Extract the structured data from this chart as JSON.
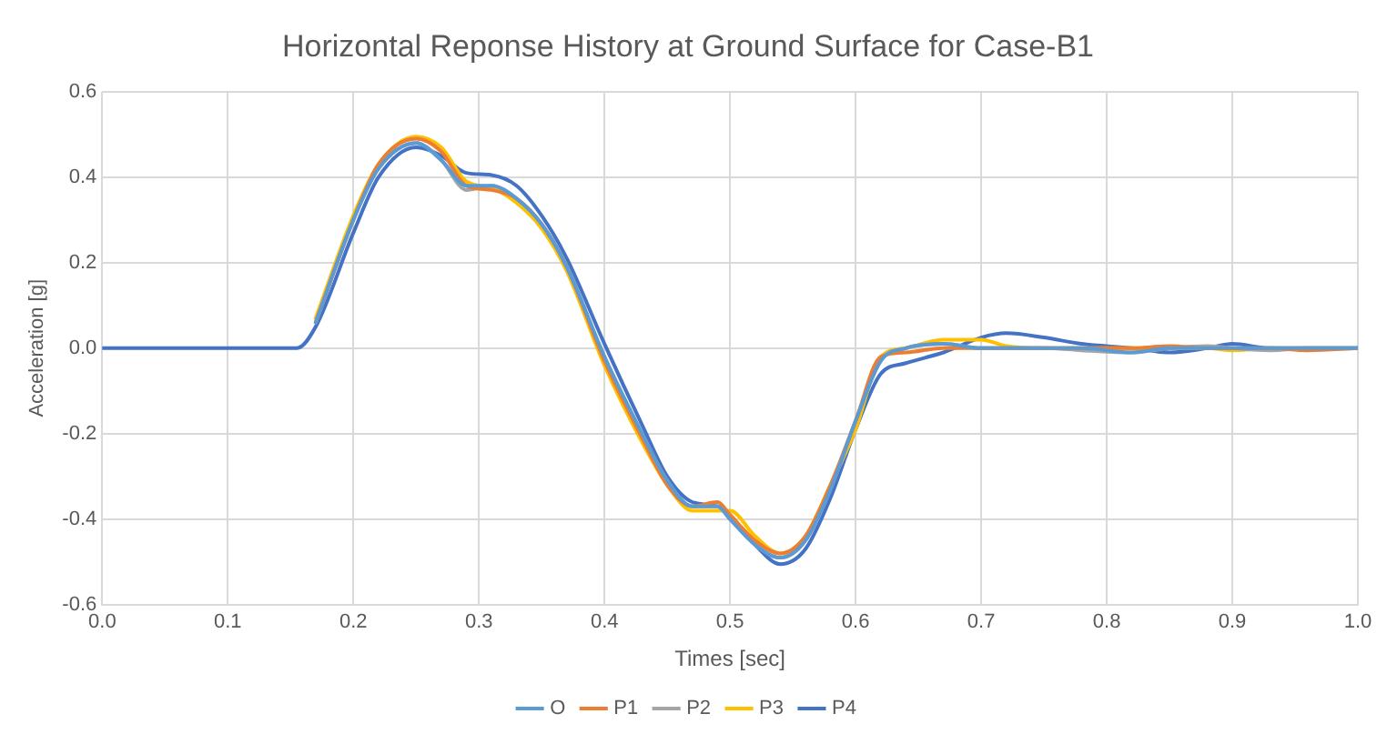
{
  "chart_data": {
    "type": "line",
    "title": "Horizontal Reponse History at Ground Surface for Case-B1",
    "xlabel": "Times [sec]",
    "ylabel": "Acceleration [g]",
    "x": [
      0,
      0.1,
      0.155,
      0.17,
      0.2,
      0.22,
      0.25,
      0.27,
      0.29,
      0.31,
      0.33,
      0.35,
      0.37,
      0.4,
      0.43,
      0.45,
      0.47,
      0.49,
      0.5,
      0.52,
      0.54,
      0.56,
      0.58,
      0.6,
      0.62,
      0.64,
      0.67,
      0.7,
      0.72,
      0.75,
      0.78,
      0.82,
      0.85,
      0.88,
      0.9,
      0.93,
      0.96,
      1.0
    ],
    "series": [
      {
        "name": "O",
        "color": "#5b9bd5",
        "values": [
          null,
          null,
          null,
          0.06,
          0.3,
          0.42,
          0.48,
          0.44,
          0.38,
          0.38,
          0.35,
          0.29,
          0.19,
          -0.02,
          -0.2,
          -0.31,
          -0.37,
          -0.37,
          -0.4,
          -0.46,
          -0.49,
          -0.45,
          -0.33,
          -0.17,
          -0.03,
          0.0,
          0.01,
          0.0,
          0.0,
          0.0,
          0.0,
          -0.01,
          0.0,
          0.0,
          0.0,
          0.0,
          0.0,
          0.0
        ]
      },
      {
        "name": "P1",
        "color": "#ed7d31",
        "values": [
          null,
          null,
          null,
          0.06,
          0.3,
          0.43,
          0.49,
          0.46,
          0.38,
          0.37,
          0.35,
          0.29,
          0.19,
          -0.03,
          -0.21,
          -0.32,
          -0.37,
          -0.36,
          -0.39,
          -0.45,
          -0.48,
          -0.44,
          -0.32,
          -0.17,
          -0.02,
          -0.01,
          0.0,
          0.0,
          0.0,
          0.0,
          0.0,
          0.0,
          0.005,
          0.0,
          0.0,
          0.0,
          -0.005,
          0.0
        ]
      },
      {
        "name": "P2",
        "color": "#a5a5a5",
        "values": [
          null,
          null,
          null,
          0.06,
          0.3,
          0.42,
          0.48,
          0.44,
          0.37,
          0.38,
          0.35,
          0.29,
          0.19,
          -0.02,
          -0.2,
          -0.31,
          -0.37,
          -0.37,
          -0.4,
          -0.46,
          -0.49,
          -0.45,
          -0.33,
          -0.17,
          -0.03,
          0.0,
          0.01,
          0.0,
          0.0,
          0.0,
          -0.005,
          -0.01,
          0.0,
          0.005,
          0.0,
          -0.005,
          0.0,
          0.0
        ]
      },
      {
        "name": "P3",
        "color": "#ffc000",
        "values": [
          null,
          null,
          null,
          0.07,
          0.31,
          0.43,
          0.495,
          0.47,
          0.39,
          0.375,
          0.34,
          0.28,
          0.18,
          -0.04,
          -0.22,
          -0.32,
          -0.38,
          -0.38,
          -0.38,
          -0.44,
          -0.48,
          -0.44,
          -0.32,
          -0.19,
          -0.02,
          0.0,
          0.02,
          0.02,
          0.005,
          0.0,
          0.0,
          0.0,
          0.0,
          0.0,
          -0.005,
          0.0,
          0.0,
          0.0
        ]
      },
      {
        "name": "P4",
        "color": "#4472c4",
        "values": [
          0,
          0,
          0,
          0.05,
          0.27,
          0.4,
          0.47,
          0.45,
          0.41,
          0.405,
          0.38,
          0.31,
          0.21,
          0.01,
          -0.18,
          -0.3,
          -0.36,
          -0.37,
          -0.39,
          -0.46,
          -0.505,
          -0.47,
          -0.35,
          -0.19,
          -0.06,
          -0.035,
          -0.01,
          0.025,
          0.035,
          0.025,
          0.01,
          0.0,
          -0.01,
          0.0,
          0.01,
          0.0,
          0.0,
          0.0
        ]
      }
    ],
    "xlim": [
      0,
      1
    ],
    "xticks": [
      {
        "value": 0,
        "label": "0.0"
      },
      {
        "value": 0.1,
        "label": "0.1"
      },
      {
        "value": 0.2,
        "label": "0.2"
      },
      {
        "value": 0.3,
        "label": "0.3"
      },
      {
        "value": 0.4,
        "label": "0.4"
      },
      {
        "value": 0.5,
        "label": "0.5"
      },
      {
        "value": 0.6,
        "label": "0.6"
      },
      {
        "value": 0.7,
        "label": "0.7"
      },
      {
        "value": 0.8,
        "label": "0.8"
      },
      {
        "value": 0.9,
        "label": "0.9"
      },
      {
        "value": 1.0,
        "label": "1.0"
      }
    ],
    "ylim": [
      -0.6,
      0.6
    ],
    "yticks": [
      {
        "value": -0.6,
        "label": "-0.6"
      },
      {
        "value": -0.4,
        "label": "-0.4"
      },
      {
        "value": -0.2,
        "label": "-0.2"
      },
      {
        "value": 0,
        "label": "0.0"
      },
      {
        "value": 0.2,
        "label": "0.2"
      },
      {
        "value": 0.4,
        "label": "0.4"
      },
      {
        "value": 0.6,
        "label": "0.6"
      }
    ],
    "grid": true,
    "legend": "bottom",
    "marker": "none",
    "line_style": "solid"
  }
}
